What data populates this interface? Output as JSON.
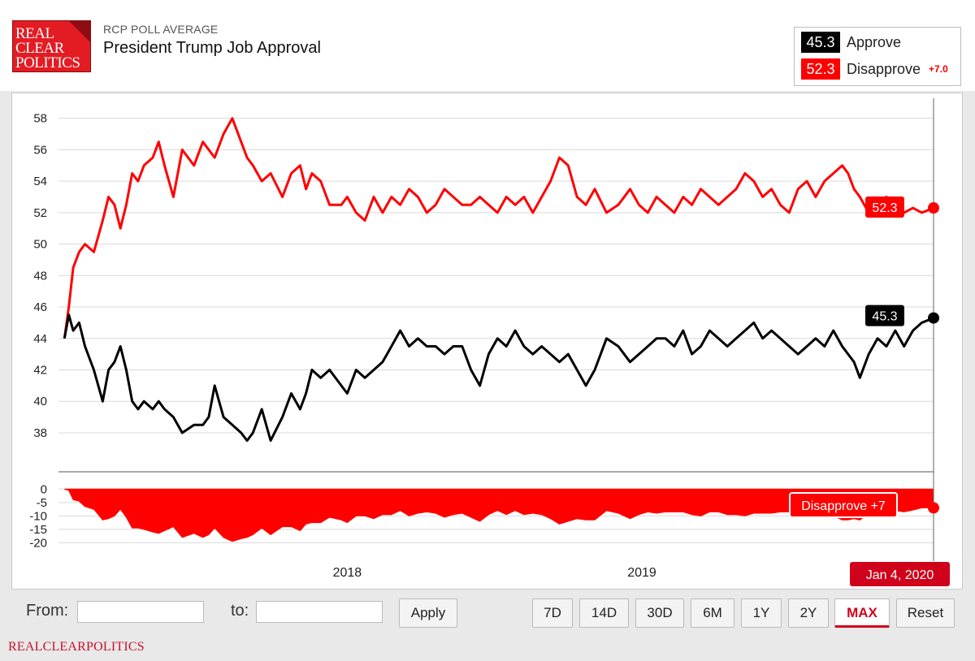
{
  "header": {
    "logo_lines": [
      "REAL",
      "CLEAR",
      "POLITICS"
    ],
    "kicker": "RCP POLL AVERAGE",
    "title": "President Trump Job Approval"
  },
  "legend": {
    "approve": {
      "value": "45.3",
      "label": "Approve"
    },
    "disapprove": {
      "value": "52.3",
      "label": "Disapprove",
      "spread": "+7.0"
    }
  },
  "colors": {
    "approve": "#000000",
    "disapprove": "#ff0000",
    "accent": "#d0021b",
    "grid": "#d9d9d9"
  },
  "chart_data": {
    "type": "line",
    "title": "President Trump Job Approval",
    "x_tick_labels": [
      "2018",
      "2019"
    ],
    "x_range": [
      "Jan 2017",
      "Jan 4, 2020"
    ],
    "ylim": [
      36.5,
      58.5
    ],
    "y_ticks": [
      38,
      40,
      42,
      44,
      46,
      48,
      50,
      52,
      54,
      56,
      58
    ],
    "series": [
      {
        "name": "Disapprove",
        "x_years": [
          2017.06,
          2017.075,
          2017.09,
          2017.11,
          2017.13,
          2017.16,
          2017.19,
          2017.21,
          2017.23,
          2017.25,
          2017.27,
          2017.29,
          2017.31,
          2017.33,
          2017.36,
          2017.38,
          2017.4,
          2017.43,
          2017.46,
          2017.5,
          2017.53,
          2017.55,
          2017.57,
          2017.6,
          2017.63,
          2017.66,
          2017.68,
          2017.7,
          2017.73,
          2017.76,
          2017.8,
          2017.83,
          2017.86,
          2017.88,
          2017.9,
          2017.93,
          2017.96,
          2018.0,
          2018.02,
          2018.05,
          2018.08,
          2018.11,
          2018.14,
          2018.17,
          2018.2,
          2018.23,
          2018.26,
          2018.29,
          2018.32,
          2018.35,
          2018.38,
          2018.41,
          2018.44,
          2018.47,
          2018.5,
          2018.53,
          2018.56,
          2018.59,
          2018.62,
          2018.65,
          2018.68,
          2018.71,
          2018.74,
          2018.77,
          2018.8,
          2018.83,
          2018.86,
          2018.9,
          2018.94,
          2018.98,
          2019.01,
          2019.04,
          2019.07,
          2019.1,
          2019.13,
          2019.16,
          2019.19,
          2019.22,
          2019.25,
          2019.28,
          2019.31,
          2019.34,
          2019.37,
          2019.4,
          2019.43,
          2019.46,
          2019.49,
          2019.52,
          2019.55,
          2019.58,
          2019.61,
          2019.64,
          2019.67,
          2019.7,
          2019.72,
          2019.74,
          2019.76,
          2019.79,
          2019.82,
          2019.85,
          2019.88,
          2019.91,
          2019.94,
          2019.97,
          2020.01
        ],
        "values": [
          44.0,
          46.0,
          48.5,
          49.5,
          50.0,
          49.5,
          51.5,
          53.0,
          52.5,
          51.0,
          52.5,
          54.5,
          54.0,
          55.0,
          55.5,
          56.5,
          55.0,
          53.0,
          56.0,
          55.0,
          56.5,
          56.0,
          55.5,
          57.0,
          58.0,
          56.5,
          55.5,
          55.0,
          54.0,
          54.5,
          53.0,
          54.5,
          55.0,
          53.5,
          54.5,
          54.0,
          52.5,
          52.5,
          53.0,
          52.0,
          51.5,
          53.0,
          52.0,
          53.0,
          52.5,
          53.5,
          53.0,
          52.0,
          52.5,
          53.5,
          53.0,
          52.5,
          52.5,
          53.0,
          52.5,
          52.0,
          53.0,
          52.5,
          53.0,
          52.0,
          53.0,
          54.0,
          55.5,
          55.0,
          53.0,
          52.5,
          53.5,
          52.0,
          52.5,
          53.5,
          52.5,
          52.0,
          53.0,
          52.5,
          52.0,
          53.0,
          52.5,
          53.5,
          53.0,
          52.5,
          53.0,
          53.5,
          54.5,
          54.0,
          53.0,
          53.5,
          52.5,
          52.0,
          53.5,
          54.0,
          53.0,
          54.0,
          54.5,
          55.0,
          54.5,
          53.5,
          53.0,
          52.0,
          52.5,
          53.0,
          52.5,
          52.0,
          52.3,
          52.0,
          52.3
        ]
      },
      {
        "name": "Approve",
        "x_years": [
          2017.06,
          2017.075,
          2017.09,
          2017.11,
          2017.13,
          2017.16,
          2017.19,
          2017.21,
          2017.23,
          2017.25,
          2017.27,
          2017.29,
          2017.31,
          2017.33,
          2017.36,
          2017.38,
          2017.4,
          2017.43,
          2017.46,
          2017.5,
          2017.53,
          2017.55,
          2017.57,
          2017.6,
          2017.63,
          2017.66,
          2017.68,
          2017.7,
          2017.73,
          2017.76,
          2017.8,
          2017.83,
          2017.86,
          2017.88,
          2017.9,
          2017.93,
          2017.96,
          2018.0,
          2018.02,
          2018.05,
          2018.08,
          2018.11,
          2018.14,
          2018.17,
          2018.2,
          2018.23,
          2018.26,
          2018.29,
          2018.32,
          2018.35,
          2018.38,
          2018.41,
          2018.44,
          2018.47,
          2018.5,
          2018.53,
          2018.56,
          2018.59,
          2018.62,
          2018.65,
          2018.68,
          2018.71,
          2018.74,
          2018.77,
          2018.8,
          2018.83,
          2018.86,
          2018.9,
          2018.94,
          2018.98,
          2019.01,
          2019.04,
          2019.07,
          2019.1,
          2019.13,
          2019.16,
          2019.19,
          2019.22,
          2019.25,
          2019.28,
          2019.31,
          2019.34,
          2019.37,
          2019.4,
          2019.43,
          2019.46,
          2019.49,
          2019.52,
          2019.55,
          2019.58,
          2019.61,
          2019.64,
          2019.67,
          2019.7,
          2019.72,
          2019.74,
          2019.76,
          2019.79,
          2019.82,
          2019.85,
          2019.88,
          2019.91,
          2019.94,
          2019.97,
          2020.01
        ],
        "values": [
          44.0,
          45.5,
          44.5,
          45.0,
          43.5,
          42.0,
          40.0,
          42.0,
          42.5,
          43.5,
          42.0,
          40.0,
          39.5,
          40.0,
          39.5,
          40.0,
          39.5,
          39.0,
          38.0,
          38.5,
          38.5,
          39.0,
          41.0,
          39.0,
          38.5,
          38.0,
          37.5,
          38.0,
          39.5,
          37.5,
          39.0,
          40.5,
          39.5,
          40.5,
          42.0,
          41.5,
          42.0,
          41.0,
          40.5,
          42.0,
          41.5,
          42.0,
          42.5,
          43.5,
          44.5,
          43.5,
          44.0,
          43.5,
          43.5,
          43.0,
          43.5,
          43.5,
          42.0,
          41.0,
          43.0,
          44.0,
          43.5,
          44.5,
          43.5,
          43.0,
          43.5,
          43.0,
          42.5,
          43.0,
          42.0,
          41.0,
          42.0,
          44.0,
          43.5,
          42.5,
          43.0,
          43.5,
          44.0,
          44.0,
          43.5,
          44.5,
          43.0,
          43.5,
          44.5,
          44.0,
          43.5,
          44.0,
          44.5,
          45.0,
          44.0,
          44.5,
          44.0,
          43.5,
          43.0,
          43.5,
          44.0,
          43.5,
          44.5,
          43.5,
          43.0,
          42.5,
          41.5,
          43.0,
          44.0,
          43.5,
          44.5,
          43.5,
          44.5,
          45.0,
          45.3
        ]
      },
      {
        "name": "Spread",
        "x_years": [
          2017.06,
          2017.075,
          2017.09,
          2017.11,
          2017.13,
          2017.16,
          2017.19,
          2017.21,
          2017.23,
          2017.25,
          2017.27,
          2017.29,
          2017.31,
          2017.33,
          2017.36,
          2017.38,
          2017.4,
          2017.43,
          2017.46,
          2017.5,
          2017.53,
          2017.55,
          2017.57,
          2017.6,
          2017.63,
          2017.66,
          2017.68,
          2017.7,
          2017.73,
          2017.76,
          2017.8,
          2017.83,
          2017.86,
          2017.88,
          2017.9,
          2017.93,
          2017.96,
          2018.0,
          2018.02,
          2018.05,
          2018.08,
          2018.11,
          2018.14,
          2018.17,
          2018.2,
          2018.23,
          2018.26,
          2018.29,
          2018.32,
          2018.35,
          2018.38,
          2018.41,
          2018.44,
          2018.47,
          2018.5,
          2018.53,
          2018.56,
          2018.59,
          2018.62,
          2018.65,
          2018.68,
          2018.71,
          2018.74,
          2018.77,
          2018.8,
          2018.83,
          2018.86,
          2018.9,
          2018.94,
          2018.98,
          2019.01,
          2019.04,
          2019.07,
          2019.1,
          2019.13,
          2019.16,
          2019.19,
          2019.22,
          2019.25,
          2019.28,
          2019.31,
          2019.34,
          2019.37,
          2019.4,
          2019.43,
          2019.46,
          2019.49,
          2019.52,
          2019.55,
          2019.58,
          2019.61,
          2019.64,
          2019.67,
          2019.7,
          2019.72,
          2019.74,
          2019.76,
          2019.79,
          2019.82,
          2019.85,
          2019.88,
          2019.91,
          2019.94,
          2019.97,
          2020.01
        ],
        "values": [
          0.0,
          -0.5,
          -4.0,
          -4.5,
          -6.5,
          -7.5,
          -11.5,
          -11.0,
          -10.0,
          -7.5,
          -10.5,
          -14.5,
          -14.5,
          -15.0,
          -16.0,
          -16.5,
          -15.5,
          -14.0,
          -18.0,
          -16.5,
          -18.0,
          -17.0,
          -14.5,
          -18.0,
          -19.5,
          -18.5,
          -18.0,
          -17.0,
          -14.5,
          -17.0,
          -14.0,
          -14.0,
          -15.5,
          -13.0,
          -12.5,
          -12.5,
          -10.5,
          -11.5,
          -12.5,
          -10.0,
          -10.0,
          -11.0,
          -9.5,
          -9.5,
          -8.0,
          -10.0,
          -9.0,
          -8.5,
          -9.0,
          -10.5,
          -9.5,
          -9.0,
          -10.5,
          -12.0,
          -9.5,
          -8.0,
          -9.5,
          -8.0,
          -9.5,
          -9.0,
          -9.5,
          -11.0,
          -13.0,
          -12.0,
          -11.0,
          -11.5,
          -11.5,
          -8.0,
          -9.0,
          -11.0,
          -9.5,
          -8.5,
          -9.0,
          -8.5,
          -8.5,
          -8.5,
          -9.5,
          -10.0,
          -8.5,
          -8.5,
          -9.5,
          -9.5,
          -10.0,
          -9.0,
          -9.0,
          -9.0,
          -8.5,
          -8.5,
          -10.5,
          -10.5,
          -9.0,
          -10.5,
          -10.0,
          -11.5,
          -11.5,
          -11.0,
          -11.5,
          -9.0,
          -8.5,
          -9.5,
          -8.0,
          -8.5,
          -7.8,
          -7.0,
          -7.0
        ]
      }
    ],
    "spread_ylim": [
      -22,
      1
    ],
    "spread_y_ticks": [
      0,
      -5,
      -10,
      -15,
      -20
    ],
    "end_date_label": "Jan 4, 2020",
    "end_labels": {
      "disapprove": "52.3",
      "approve": "45.3",
      "spread": "Disapprove +7"
    }
  },
  "controls": {
    "from_label": "From:",
    "to_label": "to:",
    "from_value": "",
    "to_value": "",
    "apply_label": "Apply",
    "ranges": [
      "7D",
      "14D",
      "30D",
      "6M",
      "1Y",
      "2Y",
      "MAX",
      "Reset"
    ],
    "active_range": "MAX"
  },
  "footer": {
    "brand": "REALCLEARPOLITICS"
  }
}
